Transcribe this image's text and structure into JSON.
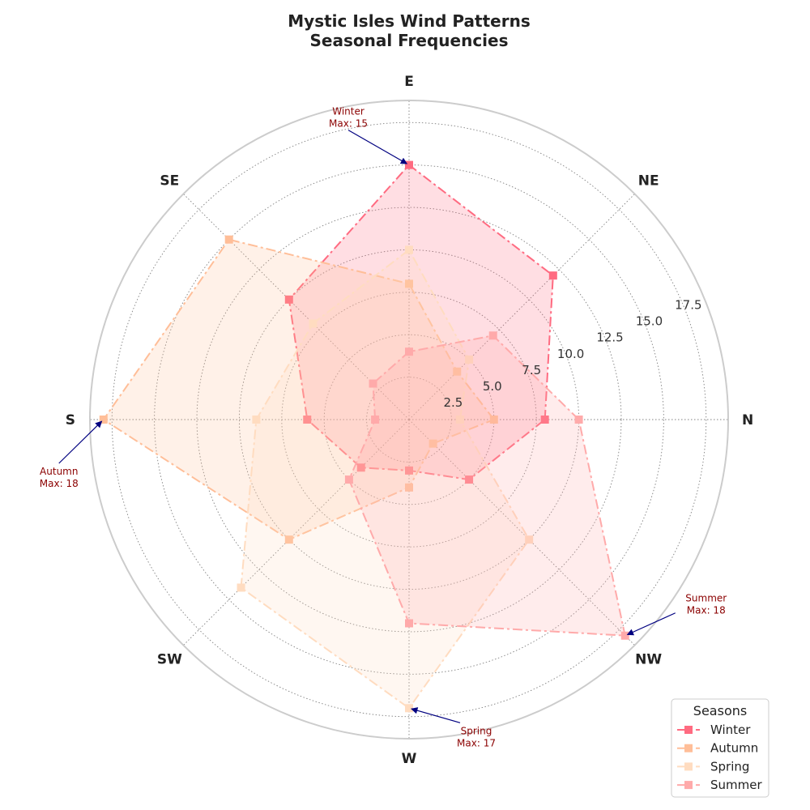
{
  "chart_data": {
    "type": "radar",
    "title_lines": [
      "Mystic Isles Wind Patterns",
      "Seasonal Frequencies"
    ],
    "directions": [
      "N",
      "NE",
      "E",
      "SE",
      "S",
      "SW",
      "W",
      "NW"
    ],
    "r_ticks": [
      2.5,
      5.0,
      7.5,
      10.0,
      12.5,
      15.0,
      17.5
    ],
    "r_tick_labels": [
      "2.5",
      "5.0",
      "7.5",
      "10.0",
      "12.5",
      "15.0",
      "17.5"
    ],
    "rlim": [
      0,
      18.8
    ],
    "grid": true,
    "legend": {
      "title": "Seasons",
      "position": "bottom-right"
    },
    "series": [
      {
        "name": "Winter",
        "values": [
          8,
          12,
          15,
          10,
          6,
          4,
          3,
          5
        ],
        "color": "#ff6b81",
        "dash": "12,4,3,4",
        "fill_opacity": 0.22
      },
      {
        "name": "Autumn",
        "values": [
          5,
          4,
          8,
          15,
          18,
          10,
          4,
          2
        ],
        "color": "#ffbe98",
        "dash": "12,4,3,4",
        "fill_opacity": 0.22
      },
      {
        "name": "Spring",
        "values": [
          3,
          5,
          10,
          8,
          9,
          14,
          17,
          10
        ],
        "color": "#ffdcc0",
        "dash": "12,4,3,4",
        "fill_opacity": 0.22
      },
      {
        "name": "Summer",
        "values": [
          10,
          7,
          4,
          3,
          2,
          5,
          12,
          18
        ],
        "color": "#ffaaaa",
        "dash": "12,4,3,4",
        "fill_opacity": 0.22
      }
    ],
    "annotations": [
      {
        "series": "Winter",
        "direction": "E",
        "value": 15,
        "line1": "Winter",
        "line2": "Max: 15"
      },
      {
        "series": "Autumn",
        "direction": "S",
        "value": 18,
        "line1": "Autumn",
        "line2": "Max: 18"
      },
      {
        "series": "Spring",
        "direction": "W",
        "value": 17,
        "line1": "Spring",
        "line2": "Max: 17"
      },
      {
        "series": "Summer",
        "direction": "NW",
        "value": 18,
        "line1": "Summer",
        "line2": "Max: 18"
      }
    ],
    "colors": {
      "arrow": "#000080",
      "annotation_text": "#8b0000",
      "grid": "#808080",
      "frame": "#cccccc"
    }
  }
}
